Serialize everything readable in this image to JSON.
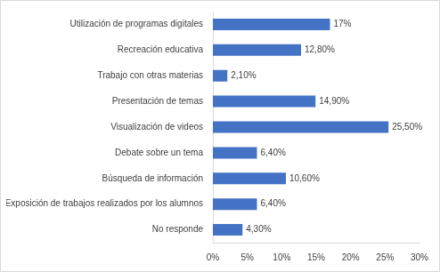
{
  "chart_data": {
    "type": "bar",
    "orientation": "horizontal",
    "categories": [
      "Utilización de programas digitales",
      "Recreación educativa",
      "Trabajo con otras materias",
      "Presentación de temas",
      "Visualización de videos",
      "Debate sobre un tema",
      "Búsqueda de información",
      "Exposición de trabajos realizados por los alumnos",
      "No responde"
    ],
    "values": [
      17,
      12.8,
      2.1,
      14.9,
      25.5,
      6.4,
      10.6,
      6.4,
      4.3
    ],
    "value_labels": [
      "17%",
      "12,80%",
      "2,10%",
      "14,90%",
      "25,50%",
      "6,40%",
      "10,60%",
      "6,40%",
      "4,30%"
    ],
    "color": "#4472c4",
    "xlim": [
      0,
      30
    ],
    "xticks": [
      {
        "value": 0,
        "label": "0%"
      },
      {
        "value": 5,
        "label": "5%"
      },
      {
        "value": 10,
        "label": "10%"
      },
      {
        "value": 15,
        "label": "15%"
      },
      {
        "value": 20,
        "label": "20%"
      },
      {
        "value": 25,
        "label": "25%"
      },
      {
        "value": 30,
        "label": "30%"
      }
    ],
    "grid": false,
    "data_labels": true
  }
}
